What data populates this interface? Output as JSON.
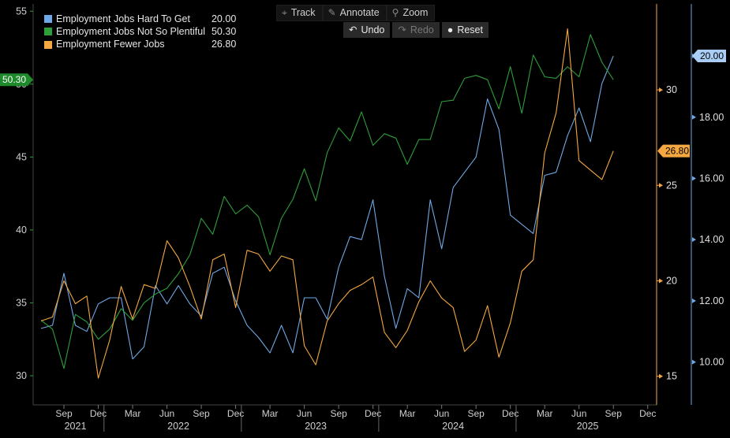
{
  "toolbar": {
    "track": {
      "label": "Track",
      "icon": "crosshair-icon"
    },
    "annotate": {
      "label": "Annotate",
      "icon": "pencil-icon"
    },
    "zoom": {
      "label": "Zoom",
      "icon": "magnifier-icon"
    },
    "undo": {
      "label": "Undo",
      "icon": "undo-icon"
    },
    "redo": {
      "label": "Redo",
      "icon": "redo-icon"
    },
    "reset": {
      "label": "Reset",
      "icon": "reset-icon"
    }
  },
  "legend": [
    {
      "name": "Employment Jobs Hard To Get",
      "value": "20.00",
      "color": "#6fa8e6"
    },
    {
      "name": "Employment Jobs Not So Plentiful",
      "value": "50.30",
      "color": "#2e9e3a"
    },
    {
      "name": "Employment Fewer Jobs",
      "value": "26.80",
      "color": "#f5a742"
    }
  ],
  "chart_data": {
    "type": "line",
    "x_start": "2021-07",
    "x_end": "2025-12",
    "x_tick_labels": [
      "Sep",
      "Dec",
      "Mar",
      "Jun",
      "Sep",
      "Dec",
      "Mar",
      "Jun",
      "Sep",
      "Dec",
      "Mar",
      "Jun",
      "Sep",
      "Dec",
      "Mar",
      "Jun",
      "Sep",
      "Dec"
    ],
    "year_labels": [
      "2021",
      "2022",
      "2023",
      "2024",
      "2025"
    ],
    "axes": {
      "left": {
        "min": 28,
        "max": 55.5,
        "ticks": [
          30,
          35,
          40,
          45,
          50,
          55
        ],
        "color": "#2e9e3a"
      },
      "right_orange": {
        "min": 13.5,
        "max": 34.5,
        "ticks": [
          15,
          20,
          25,
          30
        ],
        "color": "#f5a742"
      },
      "right_blue": {
        "min": 8.6,
        "max": 21.7,
        "ticks": [
          "10.00",
          "12.00",
          "14.00",
          "16.00",
          "18.00",
          "20.00"
        ],
        "color": "#6fa8e6"
      }
    },
    "last_value_tags": [
      {
        "series": "Employment Jobs Not So Plentiful",
        "text": "50.30"
      },
      {
        "series": "Employment Fewer Jobs",
        "text": "26.80"
      },
      {
        "series": "Employment Jobs Hard To Get",
        "text": "20.00"
      }
    ],
    "series": [
      {
        "name": "Employment Jobs Hard To Get",
        "axis": "right_blue",
        "color": "#6fa8e6",
        "values": [
          11.1,
          11.2,
          12.9,
          11.2,
          11.0,
          11.9,
          12.1,
          12.1,
          10.1,
          10.5,
          12.5,
          11.9,
          12.5,
          11.9,
          11.5,
          12.9,
          13.1,
          12.0,
          11.2,
          10.8,
          10.3,
          11.2,
          10.3,
          12.1,
          12.1,
          11.4,
          13.1,
          14.1,
          14.0,
          15.3,
          12.8,
          11.1,
          12.4,
          12.1,
          15.3,
          13.7,
          15.7,
          16.2,
          16.7,
          18.6,
          17.6,
          14.8,
          14.5,
          14.2,
          16.1,
          16.2,
          17.4,
          18.3,
          17.2,
          19.1,
          20.0
        ]
      },
      {
        "name": "Employment Jobs Not So Plentiful",
        "axis": "left",
        "color": "#2e9e3a",
        "values": [
          33.8,
          33.2,
          30.5,
          34.2,
          33.7,
          32.5,
          33.2,
          34.6,
          33.8,
          35.0,
          35.6,
          36.0,
          37.0,
          38.3,
          40.8,
          39.7,
          42.3,
          41.1,
          41.7,
          40.9,
          38.3,
          40.8,
          42.1,
          44.2,
          42.0,
          45.3,
          47.0,
          46.1,
          48.1,
          45.8,
          46.6,
          46.3,
          44.5,
          46.2,
          46.2,
          48.8,
          48.9,
          50.4,
          50.6,
          50.3,
          48.3,
          51.2,
          48.0,
          52.0,
          50.5,
          50.4,
          51.2,
          50.5,
          53.4,
          51.5,
          50.3
        ]
      },
      {
        "name": "Employment Fewer Jobs",
        "axis": "right_orange",
        "color": "#f5a742",
        "values": [
          17.9,
          18.1,
          20.0,
          18.8,
          19.2,
          14.9,
          16.9,
          19.7,
          18.0,
          19.8,
          19.6,
          22.1,
          21.2,
          19.7,
          18.0,
          21.1,
          21.4,
          18.6,
          21.6,
          21.4,
          20.5,
          21.3,
          21.1,
          16.6,
          15.6,
          17.9,
          18.8,
          19.5,
          19.8,
          20.2,
          17.3,
          16.5,
          17.4,
          18.9,
          20.0,
          19.1,
          18.6,
          16.3,
          16.9,
          18.7,
          16.0,
          17.8,
          20.5,
          21.1,
          26.7,
          28.8,
          33.2,
          26.3,
          25.8,
          25.3,
          26.8
        ]
      }
    ]
  }
}
